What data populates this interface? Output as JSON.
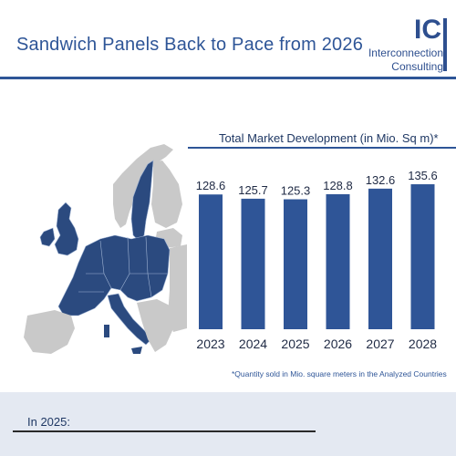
{
  "header": {
    "title": "Sandwich Panels Back to Pace from 2026",
    "logo": {
      "mark": "IC",
      "line1": "Interconnection",
      "line2": "Consulting"
    }
  },
  "colors": {
    "brand_blue": "#2e5597",
    "bar_blue": "#2f5597",
    "map_highlight": "#2b4a7f",
    "map_other": "#c9c9c9",
    "panel_background": "#e4e9f2"
  },
  "chart_data": {
    "type": "bar",
    "title": "Total Market Development (in Mio. Sq m)*",
    "categories": [
      "2023",
      "2024",
      "2025",
      "2026",
      "2027",
      "2028"
    ],
    "values": [
      128.6,
      125.7,
      125.3,
      128.8,
      132.6,
      135.6
    ],
    "value_labels": [
      "128.6",
      "125.7",
      "125.3",
      "128.8",
      "132.6",
      "135.6"
    ],
    "xlabel": "",
    "ylabel": "",
    "ylim": [
      80,
      140
    ],
    "grid": false,
    "legend": "none"
  },
  "footnote": "*Quantity sold in Mio. square meters in the Analyzed Countries",
  "bottom": {
    "label": "In 2025:"
  }
}
